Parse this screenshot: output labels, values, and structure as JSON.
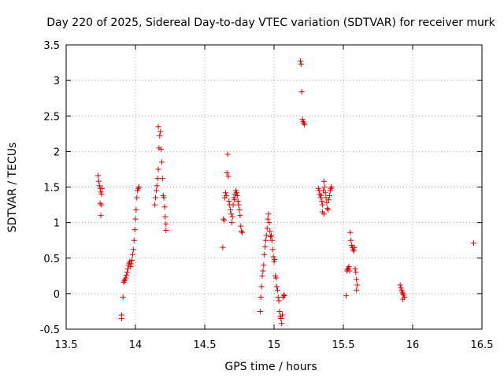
{
  "chart_data": {
    "type": "scatter",
    "title": "Day 220 of 2025, Sidereal Day-to-day VTEC variation (SDTVAR) for receiver murk",
    "xlabel": "GPS time / hours",
    "ylabel": "SDTVAR / TECUs",
    "xlim": [
      13.5,
      16.5
    ],
    "ylim": [
      -0.5,
      3.5
    ],
    "xticks": [
      "13.5",
      "14",
      "14.5",
      "15",
      "15.5",
      "16",
      "16.5"
    ],
    "yticks": [
      "-0.5",
      "0",
      "0.5",
      "1",
      "1.5",
      "2",
      "2.5",
      "3",
      "3.5"
    ],
    "grid": true,
    "marker": "+",
    "series": [
      {
        "name": "SDTVAR",
        "color": "#dd0000",
        "points": [
          [
            13.73,
            1.66
          ],
          [
            13.735,
            1.58
          ],
          [
            13.74,
            1.52
          ],
          [
            13.745,
            1.48
          ],
          [
            13.75,
            1.43
          ],
          [
            13.755,
            1.4
          ],
          [
            13.76,
            1.48
          ],
          [
            13.745,
            1.27
          ],
          [
            13.755,
            1.25
          ],
          [
            13.75,
            1.1
          ],
          [
            13.9,
            -0.3
          ],
          [
            13.9,
            -0.35
          ],
          [
            13.91,
            -0.05
          ],
          [
            13.915,
            0.16
          ],
          [
            13.92,
            0.18
          ],
          [
            13.925,
            0.2
          ],
          [
            13.93,
            0.22
          ],
          [
            13.935,
            0.26
          ],
          [
            13.94,
            0.3
          ],
          [
            13.945,
            0.35
          ],
          [
            13.95,
            0.4
          ],
          [
            13.955,
            0.43
          ],
          [
            13.96,
            0.45
          ],
          [
            13.965,
            0.38
          ],
          [
            13.97,
            0.42
          ],
          [
            13.975,
            0.47
          ],
          [
            13.98,
            0.55
          ],
          [
            13.985,
            0.62
          ],
          [
            13.99,
            0.75
          ],
          [
            13.995,
            0.9
          ],
          [
            14.0,
            1.05
          ],
          [
            14.005,
            1.18
          ],
          [
            14.01,
            1.35
          ],
          [
            14.015,
            1.45
          ],
          [
            14.02,
            1.48
          ],
          [
            14.025,
            1.5
          ],
          [
            14.14,
            1.25
          ],
          [
            14.145,
            1.35
          ],
          [
            14.15,
            1.45
          ],
          [
            14.155,
            1.52
          ],
          [
            14.16,
            1.62
          ],
          [
            14.165,
            1.75
          ],
          [
            14.17,
            2.05
          ],
          [
            14.175,
            2.22
          ],
          [
            14.165,
            2.35
          ],
          [
            14.18,
            2.28
          ],
          [
            14.185,
            2.03
          ],
          [
            14.19,
            1.85
          ],
          [
            14.195,
            1.62
          ],
          [
            14.2,
            1.38
          ],
          [
            14.205,
            1.35
          ],
          [
            14.21,
            1.22
          ],
          [
            14.215,
            1.08
          ],
          [
            14.22,
            0.98
          ],
          [
            14.22,
            0.89
          ],
          [
            14.63,
            0.65
          ],
          [
            14.635,
            1.05
          ],
          [
            14.64,
            1.03
          ],
          [
            14.645,
            1.35
          ],
          [
            14.65,
            1.42
          ],
          [
            14.655,
            1.38
          ],
          [
            14.66,
            1.7
          ],
          [
            14.665,
            1.96
          ],
          [
            14.67,
            1.65
          ],
          [
            14.675,
            1.3
          ],
          [
            14.68,
            1.25
          ],
          [
            14.685,
            1.18
          ],
          [
            14.69,
            1.12
          ],
          [
            14.695,
            1.0
          ],
          [
            14.7,
            1.08
          ],
          [
            14.705,
            1.25
          ],
          [
            14.71,
            1.35
          ],
          [
            14.715,
            1.32
          ],
          [
            14.72,
            1.4
          ],
          [
            14.725,
            1.45
          ],
          [
            14.73,
            1.42
          ],
          [
            14.735,
            1.38
          ],
          [
            14.74,
            1.3
          ],
          [
            14.745,
            1.25
          ],
          [
            14.75,
            1.18
          ],
          [
            14.755,
            1.1
          ],
          [
            14.76,
            0.95
          ],
          [
            14.765,
            0.88
          ],
          [
            14.77,
            0.86
          ],
          [
            14.9,
            -0.25
          ],
          [
            14.905,
            -0.05
          ],
          [
            14.91,
            0.1
          ],
          [
            14.915,
            0.25
          ],
          [
            14.92,
            0.32
          ],
          [
            14.925,
            0.4
          ],
          [
            14.93,
            0.55
          ],
          [
            14.935,
            0.66
          ],
          [
            14.94,
            0.75
          ],
          [
            14.945,
            0.82
          ],
          [
            14.95,
            0.92
          ],
          [
            14.955,
            1.05
          ],
          [
            14.96,
            1.12
          ],
          [
            14.965,
            1.0
          ],
          [
            14.97,
            0.88
          ],
          [
            14.975,
            0.8
          ],
          [
            14.98,
            0.82
          ],
          [
            14.985,
            0.75
          ],
          [
            14.99,
            0.62
          ],
          [
            14.995,
            0.52
          ],
          [
            15.0,
            0.45
          ],
          [
            15.005,
            0.48
          ],
          [
            15.01,
            0.25
          ],
          [
            15.015,
            0.22
          ],
          [
            15.02,
            0.1
          ],
          [
            15.025,
            0.05
          ],
          [
            15.03,
            -0.05
          ],
          [
            15.035,
            -0.1
          ],
          [
            15.04,
            -0.25
          ],
          [
            15.045,
            -0.32
          ],
          [
            15.05,
            -0.35
          ],
          [
            15.055,
            -0.42
          ],
          [
            15.06,
            -0.3
          ],
          [
            15.065,
            -0.05
          ],
          [
            15.07,
            -0.02
          ],
          [
            15.075,
            -0.03
          ],
          [
            15.19,
            3.27
          ],
          [
            15.195,
            3.23
          ],
          [
            15.2,
            2.84
          ],
          [
            15.205,
            2.45
          ],
          [
            15.21,
            2.42
          ],
          [
            15.215,
            2.4
          ],
          [
            15.22,
            2.38
          ],
          [
            15.32,
            1.48
          ],
          [
            15.325,
            1.45
          ],
          [
            15.33,
            1.4
          ],
          [
            15.335,
            1.35
          ],
          [
            15.34,
            1.38
          ],
          [
            15.345,
            1.3
          ],
          [
            15.35,
            1.25
          ],
          [
            15.355,
            1.45
          ],
          [
            15.36,
            1.58
          ],
          [
            15.365,
            1.5
          ],
          [
            15.37,
            1.42
          ],
          [
            15.375,
            1.35
          ],
          [
            15.38,
            1.28
          ],
          [
            15.385,
            1.2
          ],
          [
            15.39,
            1.18
          ],
          [
            15.395,
            1.32
          ],
          [
            15.4,
            1.38
          ],
          [
            15.405,
            1.45
          ],
          [
            15.41,
            1.48
          ],
          [
            15.415,
            1.5
          ],
          [
            15.36,
            1.12
          ],
          [
            15.35,
            1.15
          ],
          [
            15.52,
            -0.03
          ],
          [
            15.525,
            0.32
          ],
          [
            15.53,
            0.34
          ],
          [
            15.535,
            0.36
          ],
          [
            15.54,
            0.38
          ],
          [
            15.545,
            0.32
          ],
          [
            15.55,
            0.86
          ],
          [
            15.555,
            0.75
          ],
          [
            15.56,
            0.68
          ],
          [
            15.565,
            0.65
          ],
          [
            15.57,
            0.62
          ],
          [
            15.575,
            0.6
          ],
          [
            15.58,
            0.65
          ],
          [
            15.585,
            0.35
          ],
          [
            15.59,
            0.3
          ],
          [
            15.595,
            0.2
          ],
          [
            15.6,
            0.12
          ],
          [
            15.595,
            0.05
          ],
          [
            15.91,
            0.12
          ],
          [
            15.915,
            0.08
          ],
          [
            15.92,
            0.05
          ],
          [
            15.925,
            0.02
          ],
          [
            15.93,
            0.0
          ],
          [
            15.935,
            -0.02
          ],
          [
            15.94,
            -0.05
          ],
          [
            15.93,
            -0.08
          ],
          [
            16.44,
            0.71
          ]
        ]
      }
    ]
  }
}
